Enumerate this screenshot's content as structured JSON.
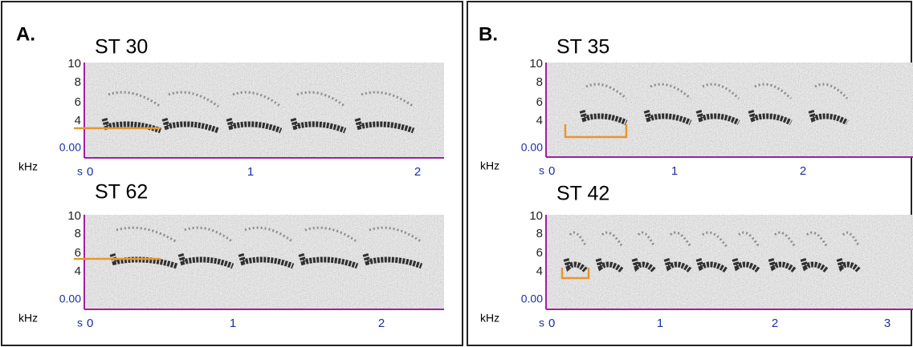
{
  "panels": [
    {
      "label": "A.",
      "spectrograms": [
        {
          "title": "ST 30",
          "yticks": [
            "10",
            "8",
            "6",
            "4",
            "0.00"
          ],
          "ylabel": "kHz",
          "xunit": "s",
          "xticks": [
            "0",
            "1",
            "2"
          ]
        },
        {
          "title": "ST 62",
          "yticks": [
            "10",
            "8",
            "6",
            "4",
            "0.00"
          ],
          "ylabel": "kHz",
          "xunit": "s",
          "xticks": [
            "0",
            "1",
            "2"
          ]
        }
      ]
    },
    {
      "label": "B.",
      "spectrograms": [
        {
          "title": "ST 35",
          "yticks": [
            "10",
            "8",
            "6",
            "4",
            "0.00"
          ],
          "ylabel": "kHz",
          "xunit": "s",
          "xticks": [
            "0",
            "1",
            "2"
          ]
        },
        {
          "title": "ST 42",
          "yticks": [
            "10",
            "8",
            "6",
            "4",
            "0.00"
          ],
          "ylabel": "kHz",
          "xunit": "s",
          "xticks": [
            "0",
            "1",
            "2",
            "3"
          ]
        }
      ]
    }
  ]
}
